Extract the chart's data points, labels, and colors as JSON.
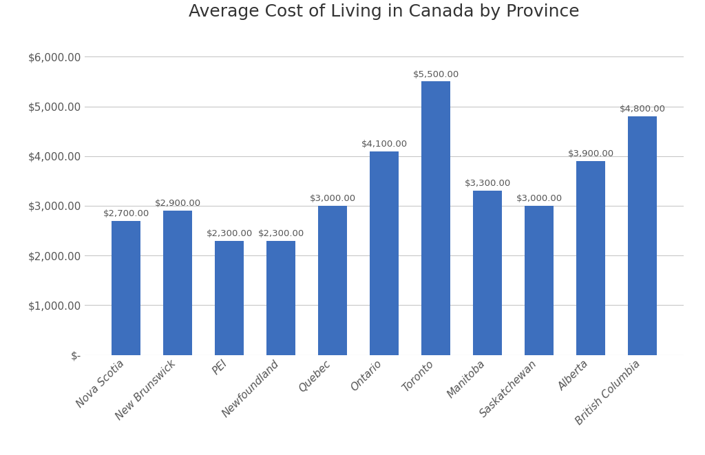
{
  "title": "Average Cost of Living in Canada by Province",
  "categories": [
    "Nova Scotia",
    "New Brunswick",
    "PEI",
    "Newfoundland",
    "Quebec",
    "Ontario",
    "Toronto",
    "Manitoba",
    "Saskatchewan",
    "Alberta",
    "British Columbia"
  ],
  "values": [
    2700,
    2900,
    2300,
    2300,
    3000,
    4100,
    5500,
    3300,
    3000,
    3900,
    4800
  ],
  "bar_color": "#3d6fbe",
  "ylim": [
    0,
    6500
  ],
  "yticks": [
    0,
    1000,
    2000,
    3000,
    4000,
    5000,
    6000
  ],
  "background_color": "#ffffff",
  "title_fontsize": 18,
  "label_fontsize": 9.5,
  "tick_fontsize": 11,
  "xtick_fontsize": 11,
  "grid_color": "#c8c8c8",
  "bar_width": 0.55
}
